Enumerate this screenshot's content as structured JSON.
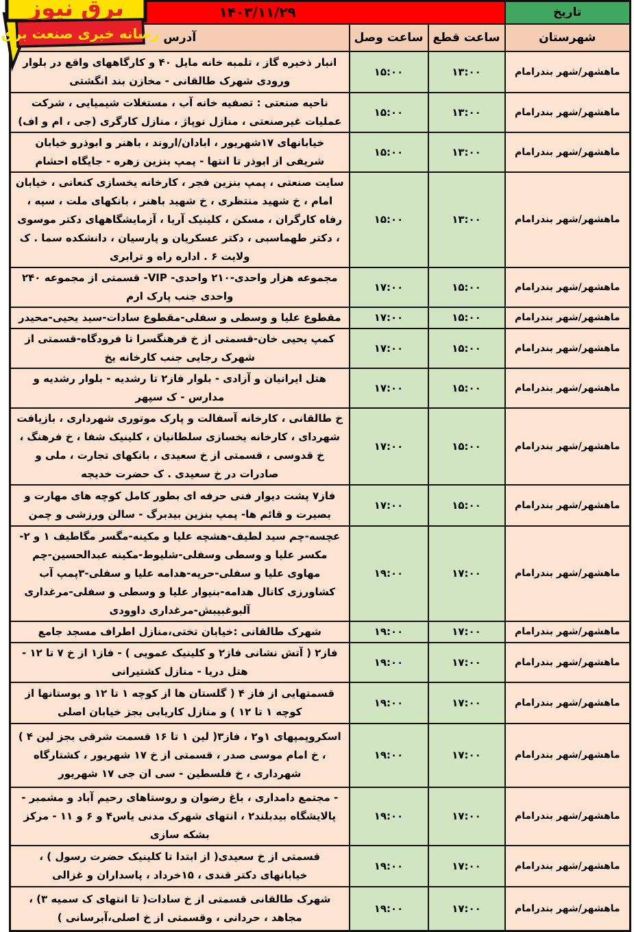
{
  "logo": {
    "brand": "برق نیوز",
    "tagline": "رسانه خبری صنعت برق"
  },
  "banner": {
    "date_label": "تاریخ",
    "date_value": "۱۴۰۳/۱۱/۲۹"
  },
  "table": {
    "headers": {
      "county": "شهرستان",
      "cut": "ساعت قطع",
      "reconnect": "ساعت وصل",
      "address": "آدرس"
    },
    "rows": [
      {
        "county": "ماهشهر/شهر بندرامام",
        "cut": "۱۳:۰۰",
        "reconnect": "۱۵:۰۰",
        "address": "انبار ذخیره گاز ، تلمبه خانه مایل ۴۰ و کارگاههای واقع در بلوار ورودی شهرک طالقانی - مخازن بند انگشتی"
      },
      {
        "county": "ماهشهر/شهر بندرامام",
        "cut": "۱۳:۰۰",
        "reconnect": "۱۵:۰۰",
        "address": "ناحیه صنعتی : تصفیه خانه آب ، مستغلات شیمیایی ، شرکت عملیات غیرصنعتی ، منازل نوپاژ ، منازل کارگری (جی ، ام و اف)"
      },
      {
        "county": "ماهشهر/شهر بندرامام",
        "cut": "۱۳:۰۰",
        "reconnect": "۱۵:۰۰",
        "address": "خیابانهای ۱۷شهریور ، ابادان/اروند ، باهنر و ابوذرو خیابان شریفی از ابوذر تا انتها - پمپ بنزین زهره - جایگاه احشام"
      },
      {
        "county": "ماهشهر/شهر بندرامام",
        "cut": "۱۳:۰۰",
        "reconnect": "۱۵:۰۰",
        "address": "سایت صنعتی ، پمپ بنزین فجر ، کارخانه یخسازی کنعانی ، خیابان امام ، خ شهید منتظری ، خ شهید باهنر ، بانکهای ملت ، سپه ، رفاه کارگران ، مسکن ، کلینیک آریا ، آزمایشگاههای دکتر موسوی ، دکتر طهماسبی ، دکتر عسکریان و پارسیان ، دانشکده سما . ک ولایت ۶ . اداره راه و ترابری"
      },
      {
        "county": "ماهشهر/شهر بندرامام",
        "cut": "۱۵:۰۰",
        "reconnect": "۱۷:۰۰",
        "address": "مجموعه هزار واحدی-۲۱۰ واحدی- VIP- قسمتی از مجموعه ۲۴۰ واحدی جنب پارک ارم"
      },
      {
        "county": "ماهشهر/شهر بندرامام",
        "cut": "۱۵:۰۰",
        "reconnect": "۱۷:۰۰",
        "address": "مقطوع علیا و وسطی و سفلی-مقطوع سادات-سید یحیی-محیدر"
      },
      {
        "county": "ماهشهر/شهر بندرامام",
        "cut": "۱۵:۰۰",
        "reconnect": "۱۷:۰۰",
        "address": "کمپ یحیی خان-قسمتی از خ فرهنگسرا تا فرودگاه-قسمتی از شهرک رجایی جنب کارخانه یخ"
      },
      {
        "county": "ماهشهر/شهر بندرامام",
        "cut": "۱۵:۰۰",
        "reconnect": "۱۷:۰۰",
        "address": "هتل ایرانیان و آزادی - بلوار فاز۲ تا رشدیه - بلوار رشدیه و مدارس - ک سپهر"
      },
      {
        "county": "ماهشهر/شهر بندرامام",
        "cut": "۱۵:۰۰",
        "reconnect": "۱۷:۰۰",
        "address": "خ طالقانی ، کارخانه آسفالت و پارک موتوری شهرداری ، بازیافت شهردای ، کارخانه یخسازی سلطانیان ، کلینیک شفا ، خ فرهنگ ، خ قدوسی ، قسمتی از خ سعیدی ، بانکهای تجارت ، ملی و صادرات در خ سعیدی . ک حضرت خدیجه"
      },
      {
        "county": "ماهشهر/شهر بندرامام",
        "cut": "۱۵:۰۰",
        "reconnect": "۱۷:۰۰",
        "address": "فاز۷ پشت دیوار فنی حرفه ای بطور کامل کوچه های مهارت و بصیرت و قائم ها- پمپ بنزین بیدبرگ - سالن ورزشی و چمن"
      },
      {
        "county": "ماهشهر/شهر بندرامام",
        "cut": "۱۷:۰۰",
        "reconnect": "۱۹:۰۰",
        "address": "عچسه-چم سید لطیف-هشچه علیا و مکینه-مگسر مگاطیف ۱ و ۲-مکسر علیا و وسطی وسفلی-شلیوط-مکینه عبدالحسین-چم مهاوی علیا و سفلی-حریه-هدامه علیا و سفلی-۳پمپ آب کشاورزی کانال هدامه-بنیوار علیا و وسطی و سفلی-مرغداری آلبوغبیبش-مرغداری داوودی"
      },
      {
        "county": "ماهشهر/شهر بندرامام",
        "cut": "۱۷:۰۰",
        "reconnect": "۱۹:۰۰",
        "address": "شهرک طالقانی :خیابان تختی،منازل اطراف مسجد جامع"
      },
      {
        "county": "ماهشهر/شهر بندرامام",
        "cut": "۱۷:۰۰",
        "reconnect": "۱۹:۰۰",
        "address": "فاز۲ ( آتش نشانی فاز۲ و کلینیک عمویی ) - فاز۱ از خ ۷ تا ۱۲ - هتل دریا - منازل کشتیرانی"
      },
      {
        "county": "ماهشهر/شهر بندرامام",
        "cut": "۱۷:۰۰",
        "reconnect": "۱۹:۰۰",
        "address": "قسمتهایی از فاز ۴ ( گلستان ها از کوچه ۱ تا ۱۲ و بوستانها از کوچه ۱ تا ۱۲ ) و منازل کاریابی بجز خیابان اصلی"
      },
      {
        "county": "ماهشهر/شهر بندرامام",
        "cut": "۱۷:۰۰",
        "reconnect": "۱۹:۰۰",
        "address": "اسکروپمپهای ۱و۲ ، فاز۳( لین ۱ تا ۱۶ قسمت شرقی بجز لین ۴ ) ، خ امام موسی صدر ، قسمتی از خ ۱۷ شهریور ، کشتارگاه شهرداری ، خ فلسطین - سی ان جی ۱۷ شهریور"
      },
      {
        "county": "ماهشهر/شهر بندرامام",
        "cut": "۱۷:۰۰",
        "reconnect": "۱۹:۰۰",
        "address": "- مجتمع دامداری ، باغ رضوان و روستاهای رحیم آباد و مشمبر - پالایشگاه بیدبلند۲ ، انتهای شهرک مدنی یاس۴ و ۶ و ۱۱ - مرکز بشکه سازی"
      },
      {
        "county": "ماهشهر/شهر بندرامام",
        "cut": "۱۷:۰۰",
        "reconnect": "۱۹:۰۰",
        "address": "قسمتی از خ سعیدی( از ابتدا تا کلینیک حضرت رسول ) ، خیابانهای دکتر قندی ، ۱۵خرداد ، پاسداران و غزالی"
      },
      {
        "county": "ماهشهر/شهر بندرامام",
        "cut": "۱۷:۰۰",
        "reconnect": "۱۹:۰۰",
        "address": "شهرک طالقانی قسمتی از خ سادات( تا انتهای ک سمیه ۳) ، مجاهد ، حردانی ، وقسمتی از خ اصلی،آبرسانی )"
      }
    ]
  },
  "colors": {
    "banner_red": "#fe0000",
    "date_green": "#3fa75f",
    "header_peach": "#f5cdb2",
    "row_peach": "#fce3d2",
    "time_green": "#d2e5c3",
    "logo_yellow": "#ffe100",
    "logo_red": "#e8202a"
  }
}
